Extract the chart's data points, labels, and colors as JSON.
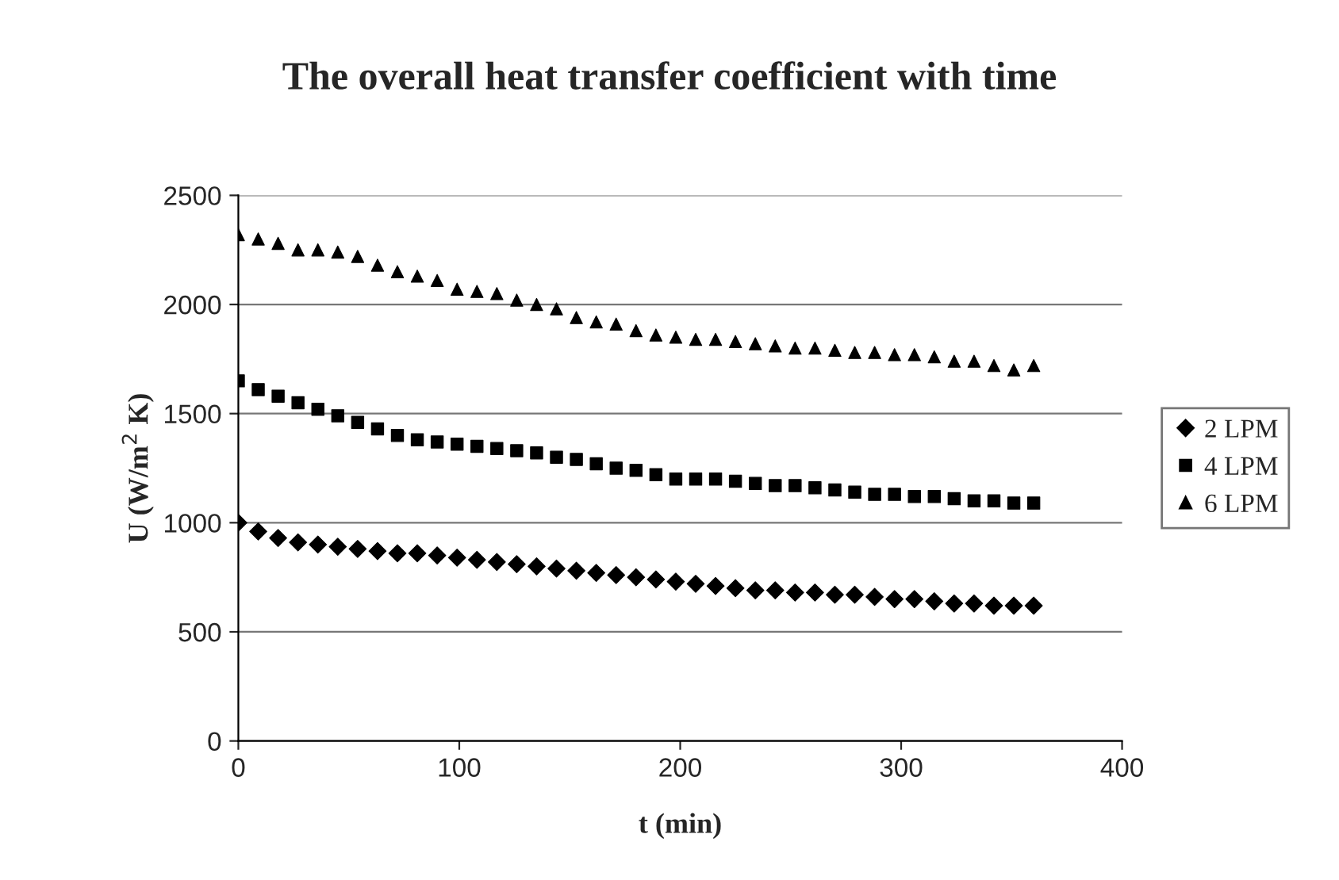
{
  "chart_data": {
    "type": "scatter",
    "title": "The overall heat transfer coefficient with time",
    "xlabel": "t (min)",
    "ylabel": "U (W/m$^{2}$ K)",
    "x": [
      0,
      9,
      18,
      27,
      36,
      45,
      54,
      63,
      72,
      81,
      90,
      99,
      108,
      117,
      126,
      135,
      144,
      153,
      162,
      171,
      180,
      189,
      198,
      207,
      216,
      225,
      234,
      243,
      252,
      261,
      270,
      279,
      288,
      297,
      306,
      315,
      324,
      333,
      342,
      351,
      360
    ],
    "series": [
      {
        "name": "2 LPM",
        "color": "#000000",
        "marker": "diamond",
        "values": [
          1000,
          960,
          930,
          910,
          900,
          890,
          880,
          870,
          860,
          860,
          850,
          840,
          830,
          820,
          810,
          800,
          790,
          780,
          770,
          760,
          750,
          740,
          730,
          720,
          710,
          700,
          690,
          690,
          680,
          680,
          670,
          670,
          660,
          650,
          650,
          640,
          630,
          630,
          620,
          620,
          620
        ]
      },
      {
        "name": "4 LPM",
        "color": "#000000",
        "marker": "square",
        "values": [
          1650,
          1610,
          1580,
          1550,
          1520,
          1490,
          1460,
          1430,
          1400,
          1380,
          1370,
          1360,
          1350,
          1340,
          1330,
          1320,
          1300,
          1290,
          1270,
          1250,
          1240,
          1220,
          1200,
          1200,
          1200,
          1190,
          1180,
          1170,
          1170,
          1160,
          1150,
          1140,
          1130,
          1130,
          1120,
          1120,
          1110,
          1100,
          1100,
          1090,
          1090
        ]
      },
      {
        "name": "6 LPM",
        "color": "#000000",
        "marker": "triangle",
        "values": [
          2320,
          2300,
          2280,
          2250,
          2250,
          2240,
          2220,
          2180,
          2150,
          2130,
          2110,
          2070,
          2060,
          2050,
          2020,
          2000,
          1980,
          1940,
          1920,
          1910,
          1880,
          1860,
          1850,
          1840,
          1840,
          1830,
          1820,
          1810,
          1800,
          1800,
          1790,
          1780,
          1780,
          1770,
          1770,
          1760,
          1740,
          1740,
          1720,
          1700,
          1720
        ]
      }
    ],
    "xlim": [
      0,
      400
    ],
    "xticks": [
      0,
      100,
      200,
      300,
      400
    ],
    "ylim": [
      0,
      2500
    ],
    "yticks": [
      0,
      500,
      1000,
      1500,
      2000,
      2500
    ],
    "grid": "y",
    "legend": "right"
  }
}
